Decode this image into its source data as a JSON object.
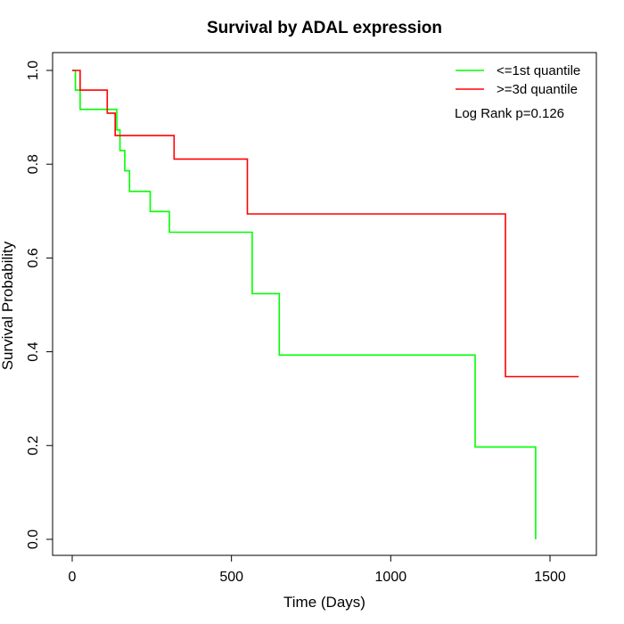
{
  "chart_data": {
    "type": "line",
    "step": true,
    "title": "Survival by ADAL expression",
    "xlabel": "Time (Days)",
    "ylabel": "Survival Probability",
    "xlim": [
      0,
      1650
    ],
    "ylim": [
      0,
      1.0
    ],
    "x_ticks": [
      0,
      500,
      1000,
      1500
    ],
    "x_tick_labels": [
      "0",
      "500",
      "1000",
      "1500"
    ],
    "y_ticks": [
      0.0,
      0.2,
      0.4,
      0.6,
      0.8,
      1.0
    ],
    "y_tick_labels": [
      "0.0",
      "0.2",
      "0.4",
      "0.6",
      "0.8",
      "1.0"
    ],
    "grid": false,
    "legend_position": "top-right",
    "annotation": "Log Rank p=0.126",
    "series": [
      {
        "name": "<=1st quantile",
        "color": "#00ff00",
        "x": [
          0,
          10,
          25,
          140,
          150,
          165,
          180,
          245,
          305,
          350,
          565,
          650,
          1265,
          1455,
          1455
        ],
        "y": [
          1.0,
          0.958,
          0.917,
          0.873,
          0.829,
          0.786,
          0.742,
          0.699,
          0.655,
          0.655,
          0.524,
          0.393,
          0.197,
          0.197,
          0.0
        ]
      },
      {
        "name": ">=3d quantile",
        "color": "#ff0000",
        "x": [
          0,
          25,
          110,
          135,
          320,
          550,
          1360,
          1590
        ],
        "y": [
          1.0,
          0.958,
          0.909,
          0.861,
          0.811,
          0.694,
          0.347,
          0.347
        ]
      }
    ]
  }
}
